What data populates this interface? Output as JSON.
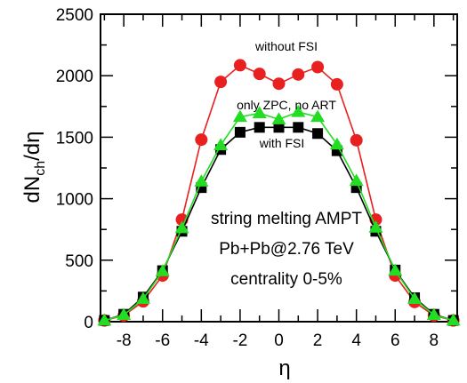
{
  "chart_data": {
    "type": "line",
    "xlabel": "η",
    "ylabel_main": "dN",
    "ylabel_sub": "ch",
    "ylabel_tail": "/dη",
    "xlim": [
      -9.2,
      9.2
    ],
    "ylim": [
      0,
      2500
    ],
    "xticks": [
      -8,
      -6,
      -4,
      -2,
      0,
      2,
      4,
      6,
      8
    ],
    "xtick_labels": [
      "-8",
      "-6",
      "-4",
      "-2",
      "0",
      "2",
      "4",
      "6",
      "8"
    ],
    "yticks": [
      0,
      500,
      1000,
      1500,
      2000,
      2500
    ],
    "ytick_labels": [
      "0",
      "500",
      "1000",
      "1500",
      "2000",
      "2500"
    ],
    "grid": false,
    "x": [
      -9,
      -8,
      -7,
      -6,
      -5,
      -4,
      -3,
      -2,
      -1,
      0,
      1,
      2,
      3,
      4,
      5,
      6,
      7,
      8,
      9
    ],
    "series": [
      {
        "key": "without",
        "color": "#e82020",
        "marker": "circle",
        "values": [
          10,
          50,
          165,
          375,
          830,
          1480,
          1950,
          2085,
          2015,
          1935,
          2010,
          2070,
          1930,
          1475,
          830,
          375,
          160,
          50,
          10
        ]
      },
      {
        "key": "with",
        "color": "#000000",
        "marker": "square",
        "values": [
          10,
          60,
          200,
          415,
          735,
          1090,
          1400,
          1540,
          1580,
          1580,
          1580,
          1530,
          1390,
          1090,
          735,
          420,
          195,
          60,
          10
        ]
      },
      {
        "key": "zpc",
        "color": "#22dd22",
        "marker": "triangle",
        "values": [
          10,
          55,
          185,
          410,
          760,
          1140,
          1435,
          1665,
          1695,
          1645,
          1705,
          1665,
          1440,
          1145,
          765,
          415,
          185,
          55,
          10
        ]
      }
    ],
    "annotations": {
      "without_fsi": "without FSI",
      "only_zpc": "only ZPC, no ART",
      "with_fsi": "with FSI",
      "info_line1": "string melting AMPT",
      "info_line2": "Pb+Pb@2.76 TeV",
      "info_line3": "centrality 0-5%"
    }
  }
}
